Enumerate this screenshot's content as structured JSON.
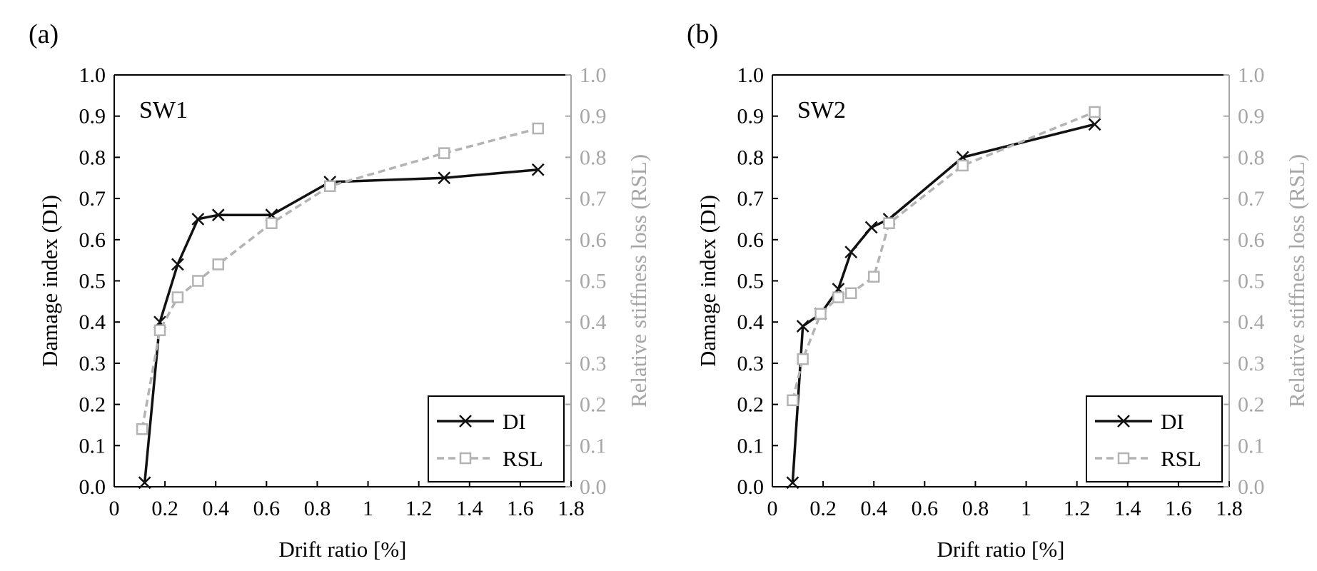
{
  "style": {
    "di_color": "#111111",
    "rsl_color": "#b3b3b3",
    "axis_color": "#000000",
    "right_axis_color": "#a6a6a6"
  },
  "chart_data": [
    {
      "type": "line",
      "panel_label": "(a)",
      "annotation": "SW1",
      "xlabel": "Drift ratio [%]",
      "ylabel": "Damage index (DI)",
      "y2label": "Relative stiffness loss (RSL)",
      "xlim": [
        0,
        1.8
      ],
      "ylim": [
        0,
        1.0
      ],
      "y2lim": [
        0,
        1.0
      ],
      "x_ticks": [
        "0",
        "0.2",
        "0.4",
        "0.6",
        "0.8",
        "1",
        "1.2",
        "1.4",
        "1.6",
        "1.8"
      ],
      "y_ticks": [
        "0.0",
        "0.1",
        "0.2",
        "0.3",
        "0.4",
        "0.5",
        "0.6",
        "0.7",
        "0.8",
        "0.9",
        "1.0"
      ],
      "y2_ticks": [
        "0.0",
        "0.1",
        "0.2",
        "0.3",
        "0.4",
        "0.5",
        "0.6",
        "0.7",
        "0.8",
        "0.9",
        "1.0"
      ],
      "grid": false,
      "legend_position": "bottom-right",
      "series": [
        {
          "name": "DI",
          "axis": "left",
          "marker": "x",
          "line": "solid",
          "x": [
            0.12,
            0.18,
            0.25,
            0.33,
            0.41,
            0.62,
            0.85,
            1.3,
            1.67
          ],
          "y": [
            0.01,
            0.4,
            0.54,
            0.65,
            0.66,
            0.66,
            0.74,
            0.75,
            0.77
          ]
        },
        {
          "name": "RSL",
          "axis": "right",
          "marker": "square",
          "line": "dashed",
          "x": [
            0.11,
            0.18,
            0.25,
            0.33,
            0.41,
            0.62,
            0.85,
            1.3,
            1.67
          ],
          "y": [
            0.14,
            0.38,
            0.46,
            0.5,
            0.54,
            0.64,
            0.73,
            0.81,
            0.87
          ]
        }
      ]
    },
    {
      "type": "line",
      "panel_label": "(b)",
      "annotation": "SW2",
      "xlabel": "Drift ratio [%]",
      "ylabel": "Damage index (DI)",
      "y2label": "Relative stiffness loss (RSL)",
      "xlim": [
        0,
        1.8
      ],
      "ylim": [
        0,
        1.0
      ],
      "y2lim": [
        0,
        1.0
      ],
      "x_ticks": [
        "0",
        "0.2",
        "0.4",
        "0.6",
        "0.8",
        "1",
        "1.2",
        "1.4",
        "1.6",
        "1.8"
      ],
      "y_ticks": [
        "0.0",
        "0.1",
        "0.2",
        "0.3",
        "0.4",
        "0.5",
        "0.6",
        "0.7",
        "0.8",
        "0.9",
        "1.0"
      ],
      "y2_ticks": [
        "0.0",
        "0.1",
        "0.2",
        "0.3",
        "0.4",
        "0.5",
        "0.6",
        "0.7",
        "0.8",
        "0.9",
        "1.0"
      ],
      "grid": false,
      "legend_position": "bottom-right",
      "series": [
        {
          "name": "DI",
          "axis": "left",
          "marker": "x",
          "line": "solid",
          "x": [
            0.08,
            0.12,
            0.19,
            0.26,
            0.31,
            0.39,
            0.46,
            0.75,
            1.27
          ],
          "y": [
            0.01,
            0.39,
            0.42,
            0.48,
            0.57,
            0.63,
            0.65,
            0.8,
            0.88
          ]
        },
        {
          "name": "RSL",
          "axis": "right",
          "marker": "square",
          "line": "dashed",
          "x": [
            0.08,
            0.12,
            0.19,
            0.26,
            0.31,
            0.4,
            0.46,
            0.75,
            1.27
          ],
          "y": [
            0.21,
            0.31,
            0.42,
            0.46,
            0.47,
            0.51,
            0.64,
            0.78,
            0.91
          ]
        }
      ]
    }
  ]
}
